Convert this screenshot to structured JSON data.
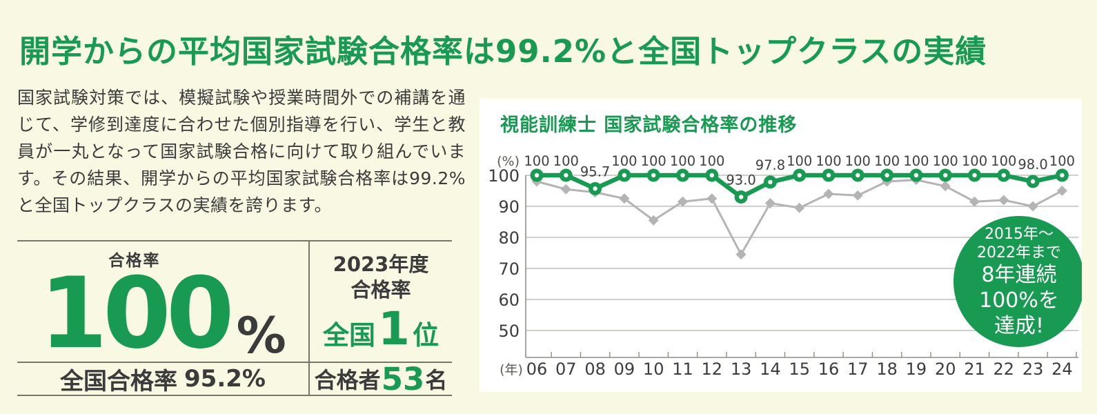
{
  "page": {
    "headline": "開学からの平均国家試験合格率は99.2%と全国トップクラスの実績",
    "body_text": "国家試験対策では、模擬試験や授業時間外での補講を通じて、学修到達度に合わせた個別指導を行い、学生と教員が一丸となって国家試験合格に向けて取り組んでいます。その結果、開学からの平均国家試験合格率は99.2%と全国トップクラスの実績を誇ります。"
  },
  "colors": {
    "accent_green": "#189a52",
    "text_dark": "#3b3b3b",
    "page_bg": "#f9f8e3",
    "panel_bg": "#ffffff",
    "line_gray": "#b4b4b4"
  },
  "stats": {
    "pass_rate": {
      "label": "合格率",
      "value": "100",
      "unit": "%"
    },
    "national_rate": {
      "label": "全国合格率",
      "value": "95.2%"
    },
    "fy2023": {
      "line1": "2023年度",
      "line2": "合格率",
      "rank_prefix": "全国",
      "rank_value": "1",
      "rank_suffix": "位"
    },
    "passers": {
      "prefix": "合格者",
      "value": "53",
      "suffix": "名"
    }
  },
  "badge": {
    "lines": [
      "2015年〜",
      "2022年まで",
      "8年連続",
      "100%を",
      "達成!"
    ]
  },
  "chart_data": {
    "type": "line",
    "title": "視能訓練士 国家試験合格率の推移",
    "y_axis_unit": "(%)",
    "x_axis_unit": "(年)",
    "categories": [
      "06",
      "07",
      "08",
      "09",
      "10",
      "11",
      "12",
      "13",
      "14",
      "15",
      "16",
      "17",
      "18",
      "19",
      "20",
      "21",
      "22",
      "23",
      "24"
    ],
    "series": [
      {
        "id": "school-pass-rate",
        "color": "#189a52",
        "marker": "circle",
        "values": [
          100,
          100,
          95.7,
          100,
          100,
          100,
          100,
          93.0,
          97.8,
          100,
          100,
          100,
          100,
          100,
          100,
          100,
          100,
          98.0,
          100
        ],
        "point_labels": [
          "100",
          "100",
          "95.7",
          "100",
          "100",
          "100",
          "100",
          "93.0",
          "97.8",
          "100",
          "100",
          "100",
          "100",
          "100",
          "100",
          "100",
          "100",
          "98.0",
          "100"
        ]
      },
      {
        "id": "gray-reference-line",
        "color": "#b4b4b4",
        "marker": "diamond",
        "values": [
          98,
          95.5,
          94.5,
          92.5,
          85.5,
          91.5,
          92.5,
          74.5,
          91,
          89.5,
          94,
          93.5,
          98,
          98.5,
          96.5,
          91.5,
          92,
          90,
          95
        ]
      }
    ],
    "ylim": [
      42,
      100
    ],
    "yticks": [
      50,
      60,
      70,
      80,
      90,
      100
    ],
    "grid": true,
    "legend": "none"
  }
}
